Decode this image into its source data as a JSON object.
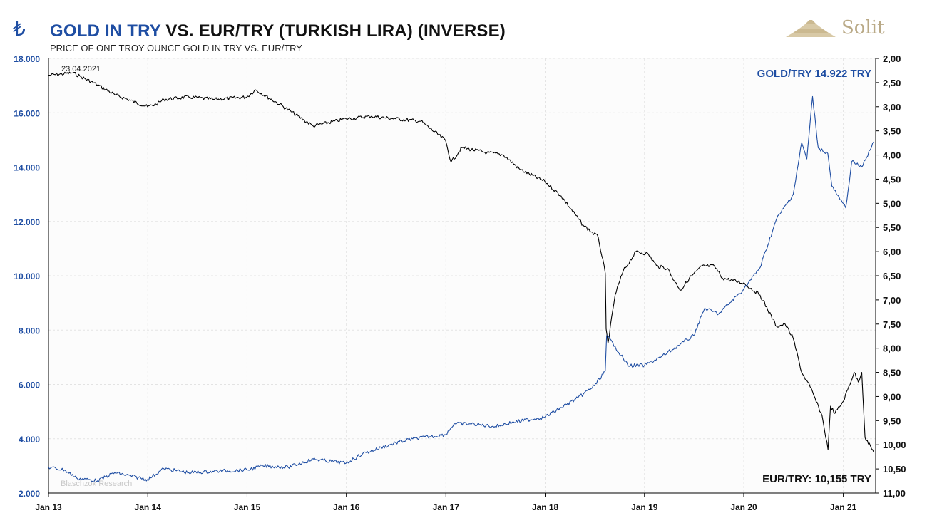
{
  "header": {
    "currency_symbol": "₺",
    "title_part1": "GOLD IN TRY",
    "title_part2": " VS. EUR/TRY (TURKISH LIRA) (INVERSE)",
    "subtitle": "PRICE OF ONE TROY OUNCE GOLD IN TRY VS. EUR/TRY",
    "logo_text": "Solit"
  },
  "colors": {
    "gold_series": "#1f4ea3",
    "eur_series": "#000000",
    "left_axis": "#1f4ea3",
    "right_axis": "#111111",
    "grid": "#e3e3e3"
  },
  "chart_data": {
    "type": "line",
    "date_label": "23.04.2021",
    "watermark": "Blaschzok Research",
    "label_gold": "GOLD/TRY 14.922 TRY",
    "label_eur": "EUR/TRY: 10,155 TRY",
    "x_tick_labels": [
      "Jan 13",
      "Jan 14",
      "Jan 15",
      "Jan 16",
      "Jan 17",
      "Jan 18",
      "Jan 19",
      "Jan 20",
      "Jan 21"
    ],
    "left_axis": {
      "ylim": [
        2000,
        18000
      ],
      "ticks": [
        "2.000",
        "4.000",
        "6.000",
        "8.000",
        "10.000",
        "12.000",
        "14.000",
        "16.000",
        "18.000"
      ]
    },
    "right_axis": {
      "inverted": true,
      "ylim": [
        2.0,
        11.0
      ],
      "ticks": [
        "2,00",
        "2,50",
        "3,00",
        "3,50",
        "4,00",
        "4,50",
        "5,00",
        "5,50",
        "6,00",
        "6,50",
        "7,00",
        "7,50",
        "8,00",
        "8,50",
        "9,00",
        "9,50",
        "10,00",
        "10,50",
        "11,00"
      ]
    },
    "series": [
      {
        "name": "GOLD/TRY",
        "axis": "left",
        "points": [
          [
            "2013-01-01",
            2950
          ],
          [
            "2013-03-01",
            2850
          ],
          [
            "2013-04-15",
            2550
          ],
          [
            "2013-06-30",
            2450
          ],
          [
            "2013-09-01",
            2750
          ],
          [
            "2013-12-31",
            2500
          ],
          [
            "2014-03-01",
            2900
          ],
          [
            "2014-06-01",
            2750
          ],
          [
            "2014-09-01",
            2800
          ],
          [
            "2014-12-31",
            2850
          ],
          [
            "2015-03-01",
            3000
          ],
          [
            "2015-06-01",
            2950
          ],
          [
            "2015-09-01",
            3250
          ],
          [
            "2015-12-31",
            3100
          ],
          [
            "2016-03-01",
            3450
          ],
          [
            "2016-07-01",
            3850
          ],
          [
            "2016-09-01",
            4000
          ],
          [
            "2016-12-31",
            4150
          ],
          [
            "2017-01-31",
            4550
          ],
          [
            "2017-04-01",
            4550
          ],
          [
            "2017-07-01",
            4450
          ],
          [
            "2017-09-01",
            4600
          ],
          [
            "2017-12-31",
            4800
          ],
          [
            "2018-03-01",
            5150
          ],
          [
            "2018-05-01",
            5500
          ],
          [
            "2018-07-01",
            5950
          ],
          [
            "2018-08-10",
            6500
          ],
          [
            "2018-08-15",
            7800
          ],
          [
            "2018-09-15",
            7400
          ],
          [
            "2018-11-01",
            6700
          ],
          [
            "2019-01-01",
            6700
          ],
          [
            "2019-03-01",
            7000
          ],
          [
            "2019-05-01",
            7400
          ],
          [
            "2019-07-01",
            7800
          ],
          [
            "2019-08-10",
            8800
          ],
          [
            "2019-10-01",
            8600
          ],
          [
            "2019-12-31",
            9500
          ],
          [
            "2020-03-01",
            10300
          ],
          [
            "2020-05-01",
            12100
          ],
          [
            "2020-07-01",
            13000
          ],
          [
            "2020-08-01",
            14900
          ],
          [
            "2020-08-20",
            14300
          ],
          [
            "2020-09-10",
            16600
          ],
          [
            "2020-10-01",
            14700
          ],
          [
            "2020-11-05",
            14500
          ],
          [
            "2020-11-20",
            13300
          ],
          [
            "2020-12-20",
            12800
          ],
          [
            "2021-01-10",
            12500
          ],
          [
            "2021-02-01",
            14200
          ],
          [
            "2021-03-10",
            14000
          ],
          [
            "2021-04-23",
            14922
          ]
        ]
      },
      {
        "name": "EUR/TRY",
        "axis": "right",
        "points": [
          [
            "2013-01-01",
            2.35
          ],
          [
            "2013-04-01",
            2.3
          ],
          [
            "2013-05-01",
            2.38
          ],
          [
            "2013-07-01",
            2.55
          ],
          [
            "2013-09-01",
            2.75
          ],
          [
            "2013-12-31",
            3.0
          ],
          [
            "2014-02-01",
            2.95
          ],
          [
            "2014-03-01",
            2.85
          ],
          [
            "2014-06-01",
            2.8
          ],
          [
            "2014-09-01",
            2.85
          ],
          [
            "2014-12-31",
            2.8
          ],
          [
            "2015-02-01",
            2.65
          ],
          [
            "2015-05-01",
            2.95
          ],
          [
            "2015-09-01",
            3.4
          ],
          [
            "2015-12-31",
            3.25
          ],
          [
            "2016-04-01",
            3.2
          ],
          [
            "2016-07-01",
            3.25
          ],
          [
            "2016-10-01",
            3.3
          ],
          [
            "2016-12-31",
            3.7
          ],
          [
            "2017-01-20",
            4.15
          ],
          [
            "2017-03-01",
            3.85
          ],
          [
            "2017-06-01",
            3.95
          ],
          [
            "2017-08-01",
            4.0
          ],
          [
            "2017-10-01",
            4.3
          ],
          [
            "2017-12-31",
            4.55
          ],
          [
            "2018-03-01",
            4.85
          ],
          [
            "2018-05-20",
            5.45
          ],
          [
            "2018-07-15",
            5.7
          ],
          [
            "2018-08-10",
            6.45
          ],
          [
            "2018-08-13",
            7.6
          ],
          [
            "2018-08-20",
            7.9
          ],
          [
            "2018-09-15",
            6.9
          ],
          [
            "2018-10-15",
            6.4
          ],
          [
            "2018-12-01",
            6.0
          ],
          [
            "2019-01-15",
            6.05
          ],
          [
            "2019-02-15",
            6.3
          ],
          [
            "2019-03-27",
            6.35
          ],
          [
            "2019-04-20",
            6.6
          ],
          [
            "2019-05-15",
            6.8
          ],
          [
            "2019-06-15",
            6.55
          ],
          [
            "2019-08-01",
            6.3
          ],
          [
            "2019-09-15",
            6.3
          ],
          [
            "2019-10-15",
            6.55
          ],
          [
            "2019-12-31",
            6.65
          ],
          [
            "2020-03-01",
            6.9
          ],
          [
            "2020-05-01",
            7.55
          ],
          [
            "2020-06-01",
            7.5
          ],
          [
            "2020-07-01",
            7.8
          ],
          [
            "2020-08-01",
            8.5
          ],
          [
            "2020-09-01",
            8.8
          ],
          [
            "2020-10-15",
            9.4
          ],
          [
            "2020-11-06",
            10.1
          ],
          [
            "2020-11-15",
            9.2
          ],
          [
            "2020-12-01",
            9.35
          ],
          [
            "2021-01-01",
            9.1
          ],
          [
            "2021-02-10",
            8.5
          ],
          [
            "2021-02-25",
            8.7
          ],
          [
            "2021-03-10",
            8.5
          ],
          [
            "2021-03-22",
            9.85
          ],
          [
            "2021-04-23",
            10.155
          ]
        ]
      }
    ]
  }
}
